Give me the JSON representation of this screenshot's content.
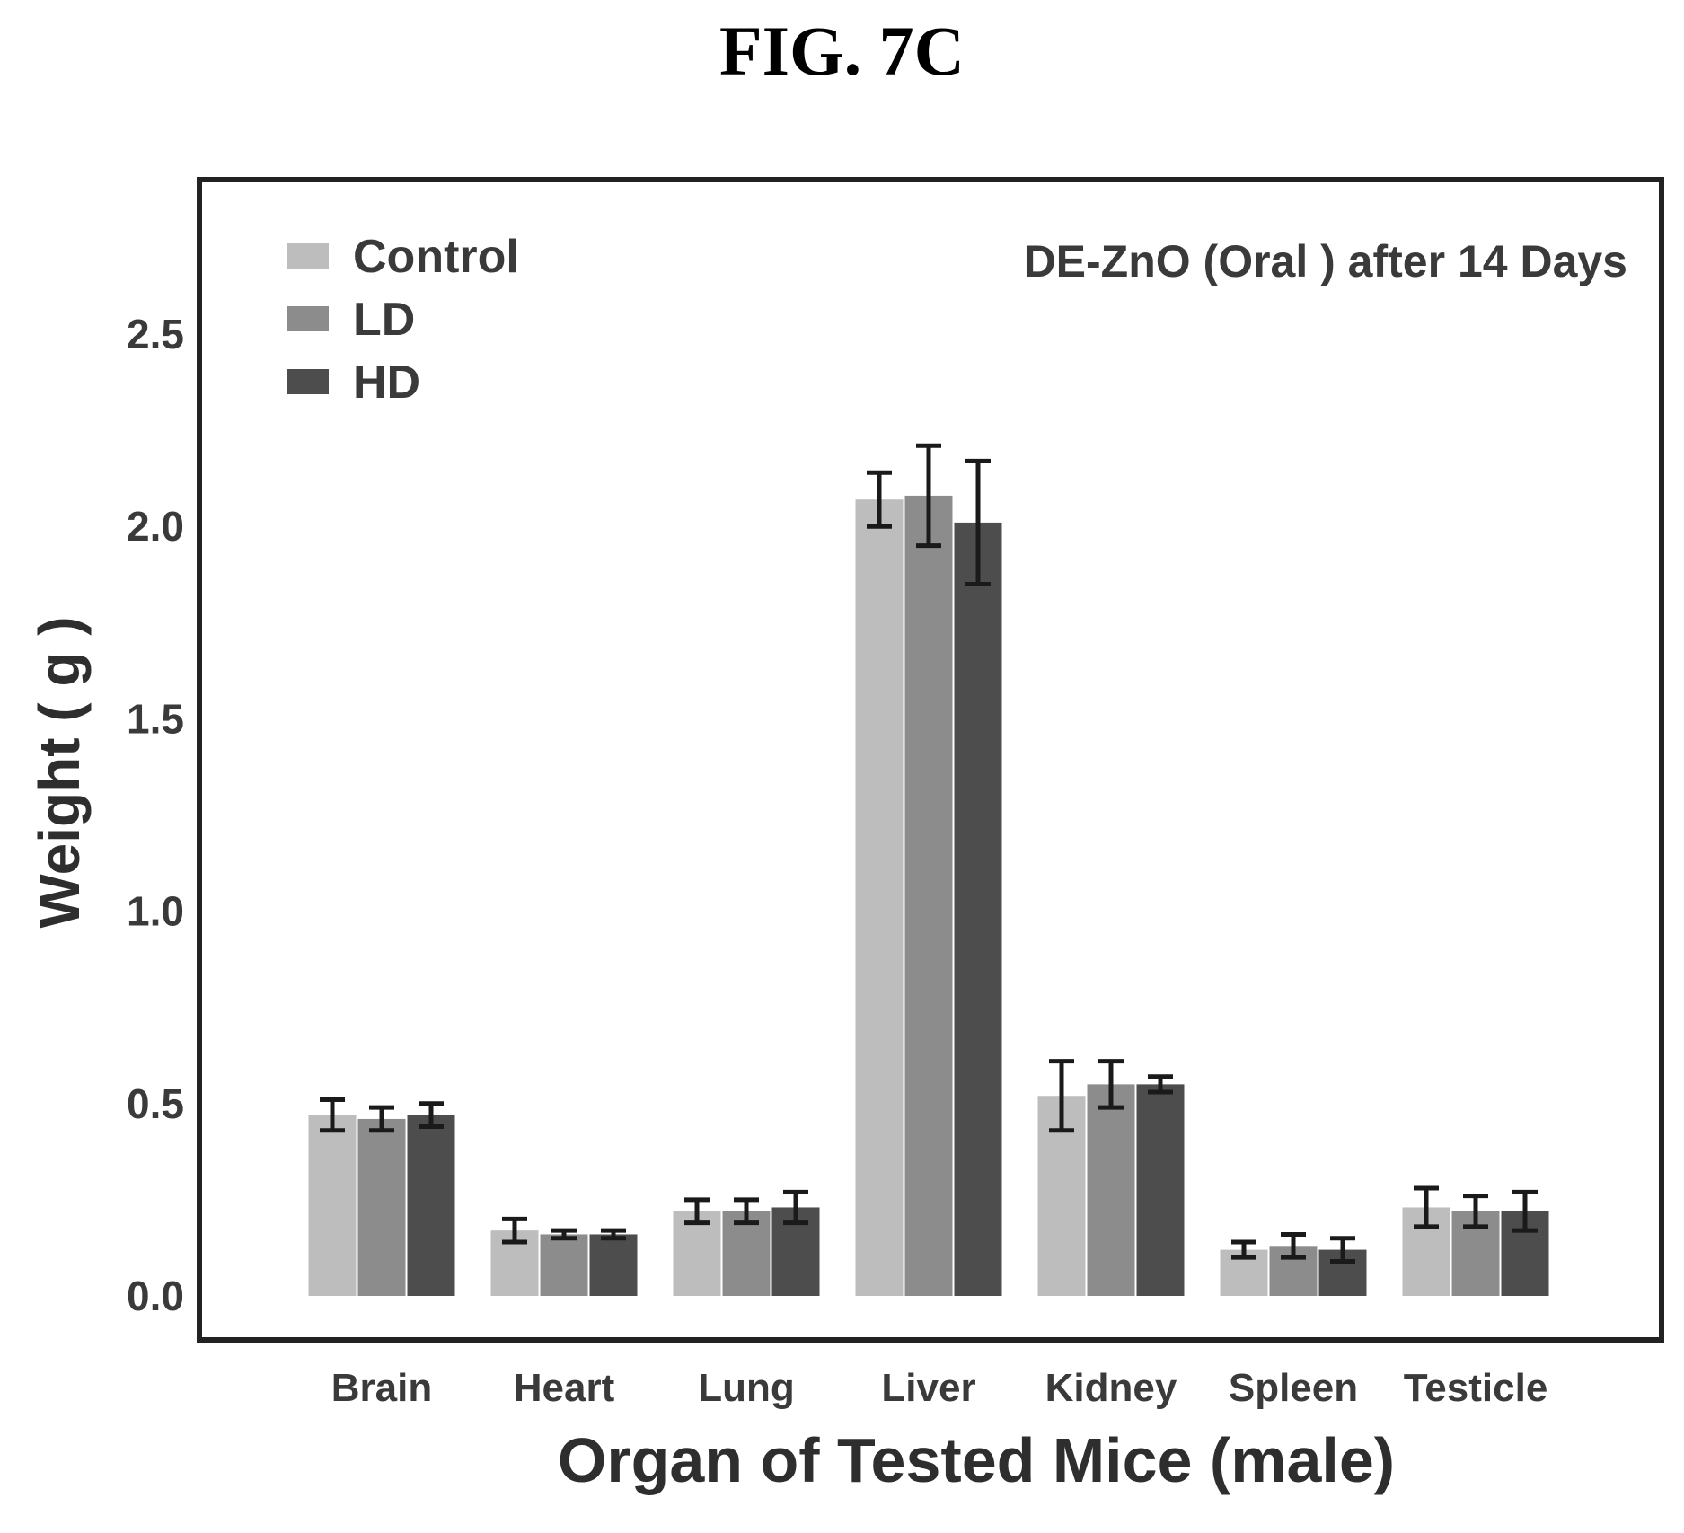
{
  "figure": {
    "title": "FIG. 7C"
  },
  "chart_data": {
    "type": "bar",
    "annotation": "DE-ZnO (Oral ) after 14 Days",
    "xlabel": "Organ of Tested Mice (male)",
    "ylabel": "Weight ( g )",
    "ylim": [
      -0.1,
      2.85
    ],
    "yticks": [
      "0.0",
      "0.5",
      "1.0",
      "1.5",
      "2.0",
      "2.5"
    ],
    "ytick_values": [
      0.0,
      0.5,
      1.0,
      1.5,
      2.0,
      2.5
    ],
    "grid": false,
    "legend_position": "top-left",
    "categories": [
      "Brain",
      "Heart",
      "Lung",
      "Liver",
      "Kidney",
      "Spleen",
      "Testicle"
    ],
    "series": [
      {
        "name": "Control",
        "color": "#bdbdbd",
        "values": [
          0.47,
          0.17,
          0.22,
          2.07,
          0.52,
          0.12,
          0.23
        ],
        "errors": [
          0.04,
          0.03,
          0.03,
          0.07,
          0.09,
          0.02,
          0.05
        ]
      },
      {
        "name": "LD",
        "color": "#8c8c8c",
        "values": [
          0.46,
          0.16,
          0.22,
          2.08,
          0.55,
          0.13,
          0.22
        ],
        "errors": [
          0.03,
          0.01,
          0.03,
          0.13,
          0.06,
          0.03,
          0.04
        ]
      },
      {
        "name": "HD",
        "color": "#4d4d4d",
        "values": [
          0.47,
          0.16,
          0.23,
          2.01,
          0.55,
          0.12,
          0.22
        ],
        "errors": [
          0.03,
          0.01,
          0.04,
          0.16,
          0.02,
          0.03,
          0.05
        ]
      }
    ]
  }
}
